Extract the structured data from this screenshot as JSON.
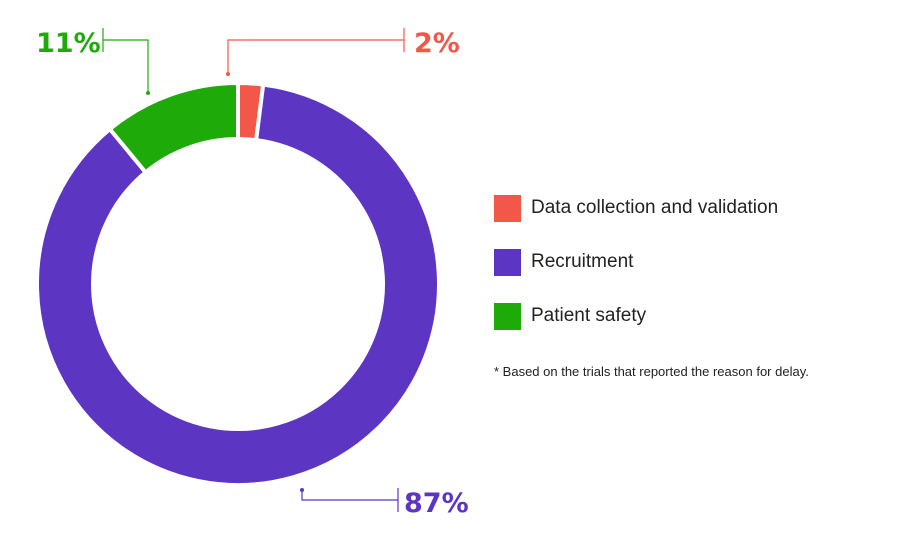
{
  "chart_data": {
    "type": "pie",
    "categories": [
      "Data collection and validation",
      "Recruitment",
      "Patient safety"
    ],
    "values": [
      2,
      87,
      11
    ],
    "value_labels": [
      "2%",
      "87%",
      "11%"
    ],
    "colors": [
      "#f2574a",
      "#5c35c2",
      "#1eab0a"
    ],
    "donut": true,
    "legend_position": "right",
    "footnote": "* Based on the trials that reported the reason for delay."
  }
}
